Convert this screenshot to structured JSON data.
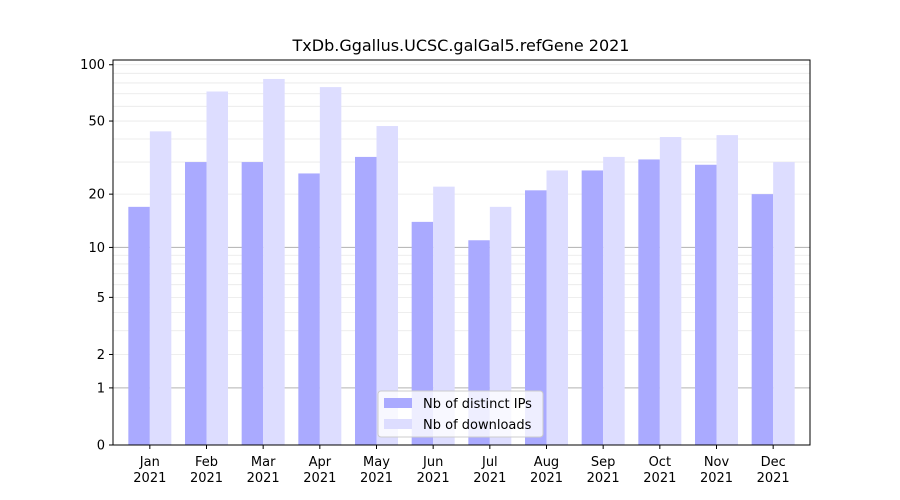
{
  "chart_data": {
    "type": "bar",
    "title": "TxDb.Ggallus.UCSC.galGal5.refGene 2021",
    "xlabel": "",
    "ylabel": "",
    "yscale": "log1p",
    "ylim": [
      0,
      100
    ],
    "grid": true,
    "legend_position": "lower-center",
    "categories": [
      [
        "Jan",
        "2021"
      ],
      [
        "Feb",
        "2021"
      ],
      [
        "Mar",
        "2021"
      ],
      [
        "Apr",
        "2021"
      ],
      [
        "May",
        "2021"
      ],
      [
        "Jun",
        "2021"
      ],
      [
        "Jul",
        "2021"
      ],
      [
        "Aug",
        "2021"
      ],
      [
        "Sep",
        "2021"
      ],
      [
        "Oct",
        "2021"
      ],
      [
        "Nov",
        "2021"
      ],
      [
        "Dec",
        "2021"
      ]
    ],
    "yticks": [
      "0",
      "1",
      "2",
      "5",
      "10",
      "20",
      "50",
      "100"
    ],
    "series": [
      {
        "name": "Nb of distinct IPs",
        "color": "#aaaaff",
        "values": [
          17,
          30,
          30,
          26,
          32,
          14,
          11,
          21,
          27,
          31,
          29,
          20
        ]
      },
      {
        "name": "Nb of downloads",
        "color": "#ddddff",
        "values": [
          44,
          72,
          84,
          76,
          47,
          22,
          17,
          27,
          32,
          41,
          42,
          30
        ]
      }
    ]
  }
}
